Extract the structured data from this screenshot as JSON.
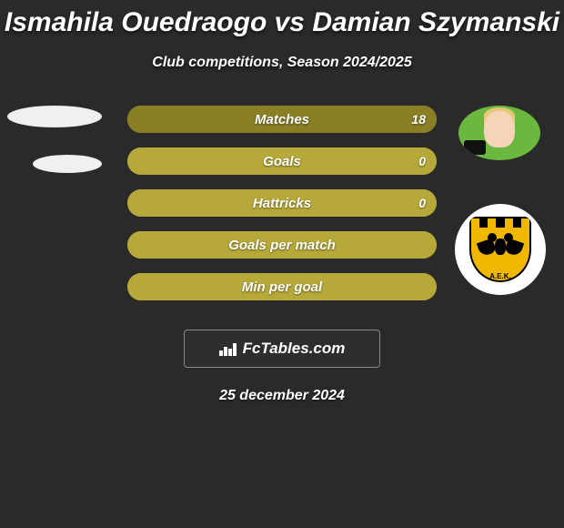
{
  "title": "Ismahila Ouedraogo vs Damian Szymanski",
  "subtitle": "Club competitions, Season 2024/2025",
  "date": "25 december 2024",
  "brand": "FcTables.com",
  "colors": {
    "background": "#2a2a2a",
    "bar_dark": "#8a7f24",
    "bar_light": "#b6a93a",
    "text": "#ffffff"
  },
  "player_right": {
    "photo_bg": "#6bb83f"
  },
  "club_right": {
    "name": "A.E.K.",
    "shield_color": "#f0b800",
    "stripe_colors": [
      "#f0b800",
      "#000000",
      "#f0b800",
      "#000000",
      "#f0b800",
      "#000000",
      "#f0b800"
    ]
  },
  "stats": [
    {
      "label": "Matches",
      "left_value": "",
      "right_value": "18",
      "left_pct": 0,
      "right_pct": 100,
      "track_color": "#b6a93a",
      "fill_color": "#8a7f24"
    },
    {
      "label": "Goals",
      "left_value": "",
      "right_value": "0",
      "left_pct": 0,
      "right_pct": 100,
      "track_color": "#8a7f24",
      "fill_color": "#b6a93a"
    },
    {
      "label": "Hattricks",
      "left_value": "",
      "right_value": "0",
      "left_pct": 0,
      "right_pct": 100,
      "track_color": "#8a7f24",
      "fill_color": "#b6a93a"
    },
    {
      "label": "Goals per match",
      "left_value": "",
      "right_value": "",
      "left_pct": 0,
      "right_pct": 100,
      "track_color": "#8a7f24",
      "fill_color": "#b6a93a"
    },
    {
      "label": "Min per goal",
      "left_value": "",
      "right_value": "",
      "left_pct": 0,
      "right_pct": 100,
      "track_color": "#8a7f24",
      "fill_color": "#b6a93a"
    }
  ],
  "bar_style": {
    "height": 30,
    "gap": 16,
    "border_radius": 16,
    "label_fontsize": 15,
    "value_fontsize": 14
  }
}
